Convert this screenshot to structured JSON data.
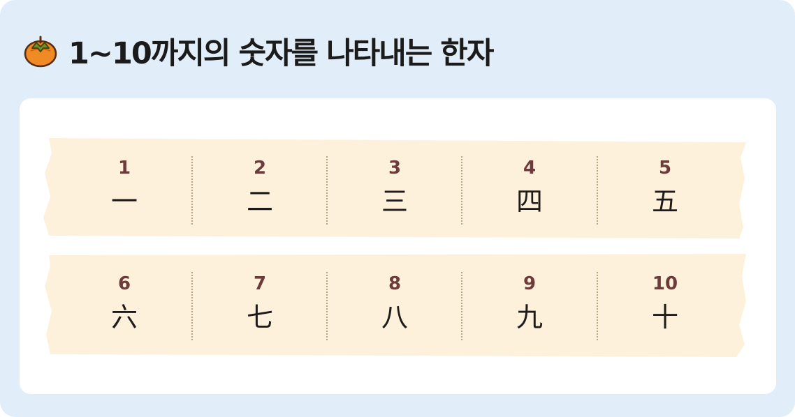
{
  "title": "1~10까지의 숫자를 나타내는 한자",
  "icon": "persimmon-icon",
  "colors": {
    "background": "#e1eef9",
    "card": "#ffffff",
    "tape": "#fdf1dc",
    "number": "#6d3b39",
    "hanja": "#1f1b18"
  },
  "rows": [
    [
      {
        "number": "1",
        "hanja": "一"
      },
      {
        "number": "2",
        "hanja": "二"
      },
      {
        "number": "3",
        "hanja": "三"
      },
      {
        "number": "4",
        "hanja": "四"
      },
      {
        "number": "5",
        "hanja": "五"
      }
    ],
    [
      {
        "number": "6",
        "hanja": "六"
      },
      {
        "number": "7",
        "hanja": "七"
      },
      {
        "number": "8",
        "hanja": "八"
      },
      {
        "number": "9",
        "hanja": "九"
      },
      {
        "number": "10",
        "hanja": "十"
      }
    ]
  ]
}
